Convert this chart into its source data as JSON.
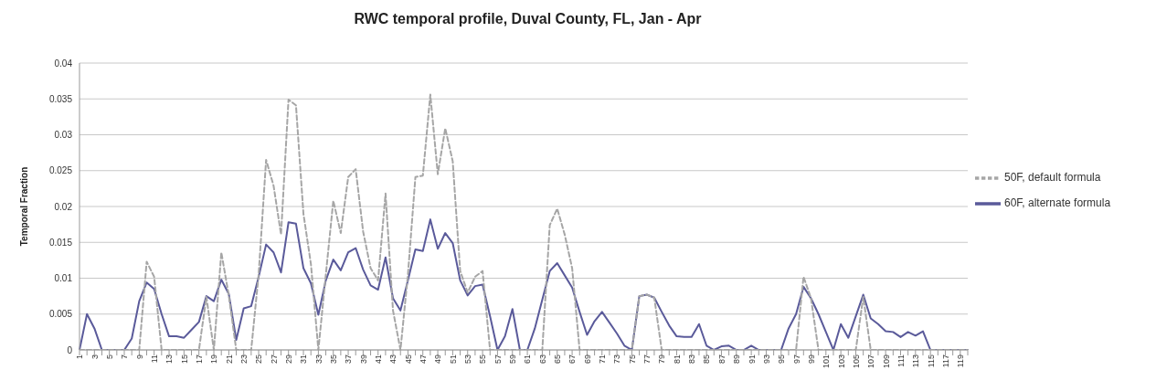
{
  "chart_data": {
    "type": "line",
    "title": "RWC temporal profile, Duval County, FL, Jan - Apr",
    "ylabel": "Temporal Fraction",
    "categories": [
      "1",
      null,
      "3",
      null,
      "5",
      null,
      "7",
      null,
      "9",
      null,
      "11",
      null,
      "13",
      null,
      "15",
      null,
      "17",
      null,
      "19",
      null,
      "21",
      null,
      "23",
      null,
      "25",
      null,
      "27",
      null,
      "29",
      null,
      "31",
      null,
      "33",
      null,
      "35",
      null,
      "37",
      null,
      "39",
      null,
      "41",
      null,
      "43",
      null,
      "45",
      null,
      "47",
      null,
      "49",
      null,
      "51",
      null,
      "53",
      null,
      "55",
      null,
      "57",
      null,
      "59",
      null,
      "61",
      null,
      "63",
      null,
      "65",
      null,
      "67",
      null,
      "69",
      null,
      "71",
      null,
      "73",
      null,
      "75",
      null,
      "77",
      null,
      "79",
      null,
      "81",
      null,
      "83",
      null,
      "85",
      null,
      "87",
      null,
      "89",
      null,
      "91",
      null,
      "93",
      null,
      "95",
      null,
      "97",
      null,
      "99",
      null,
      "101",
      null,
      "103",
      null,
      "105",
      null,
      "107",
      null,
      "109",
      null,
      "111",
      null,
      "113",
      null,
      "115",
      null,
      "117",
      null,
      "119",
      null
    ],
    "series": [
      {
        "name": "60F, alternate formula",
        "color": "#5a5a9a",
        "line_style": "solid",
        "values": [
          0,
          0.005,
          0.003,
          0,
          0,
          0,
          0,
          0.0016,
          0.0068,
          0.0094,
          0.0085,
          0.005,
          0.0019,
          0.0019,
          0.0017,
          0.0028,
          0.0039,
          0.0075,
          0.0068,
          0.0098,
          0.0078,
          0.0014,
          0.0058,
          0.0061,
          0.0102,
          0.0147,
          0.0136,
          0.0108,
          0.0178,
          0.0176,
          0.0114,
          0.0093,
          0.0049,
          0.0097,
          0.0126,
          0.0111,
          0.0136,
          0.0142,
          0.0112,
          0.009,
          0.0084,
          0.0129,
          0.0072,
          0.0055,
          0.0097,
          0.014,
          0.0138,
          0.0182,
          0.0141,
          0.0163,
          0.0149,
          0.0097,
          0.0076,
          0.0089,
          0.0091,
          0.0047,
          0,
          0.0019,
          0.0057,
          0,
          0,
          0.003,
          0.007,
          0.011,
          0.0121,
          0.0104,
          0.0087,
          0.0053,
          0.0021,
          0.004,
          0.0053,
          0.0038,
          0.0023,
          0.0006,
          0,
          0.0075,
          0.0077,
          0.0073,
          0.0053,
          0.0034,
          0.0019,
          0.0018,
          0.0018,
          0.0036,
          0.0006,
          0,
          0.0005,
          0.0006,
          0,
          0,
          0.0006,
          0,
          0,
          0,
          0,
          0.003,
          0.005,
          0.0088,
          0.0072,
          0.005,
          0.0025,
          0,
          0.0036,
          0.0017,
          0.0047,
          0.0077,
          0.0044,
          0.0036,
          0.0026,
          0.0025,
          0.0018,
          0.0025,
          0.002,
          0.0026,
          0,
          0,
          0,
          0,
          0,
          0
        ]
      },
      {
        "name": "50F, default formula",
        "color": "#a6a6a6",
        "line_style": "dashed",
        "values": [
          0,
          0,
          0,
          0,
          0,
          0,
          0,
          0,
          0,
          0.0123,
          0.0102,
          0,
          0,
          0,
          0,
          0,
          0,
          0.0074,
          0,
          0.0136,
          0.0076,
          0,
          0,
          0,
          0.0105,
          0.0265,
          0.0229,
          0.0161,
          0.0349,
          0.0341,
          0.019,
          0.012,
          0,
          0.0105,
          0.0208,
          0.0163,
          0.0241,
          0.0252,
          0.0165,
          0.0114,
          0.0097,
          0.0218,
          0.0055,
          0,
          0.0105,
          0.0241,
          0.0243,
          0.0356,
          0.0245,
          0.0309,
          0.0263,
          0.011,
          0.008,
          0.0102,
          0.011,
          0,
          0,
          0,
          0,
          0,
          0,
          0,
          0,
          0.0174,
          0.0197,
          0.0161,
          0.0114,
          0,
          0,
          0,
          0,
          0,
          0,
          0,
          0,
          0.0075,
          0.0077,
          0.0073,
          0,
          0,
          0,
          0,
          0,
          0,
          0,
          0,
          0,
          0,
          0,
          0,
          0,
          0,
          0,
          0,
          0,
          0,
          0,
          0.0102,
          0.0072,
          0,
          0,
          0,
          0,
          0,
          0,
          0.0074,
          0,
          0,
          0,
          0,
          0,
          0,
          0,
          0,
          0,
          0,
          0,
          0,
          0,
          0
        ]
      }
    ],
    "ylim": [
      0,
      0.04
    ],
    "yticks": [
      0,
      0.005,
      0.01,
      0.015,
      0.02,
      0.025,
      0.03,
      0.035,
      0.04
    ],
    "grid": "y",
    "legend": "right",
    "marker": "none"
  }
}
